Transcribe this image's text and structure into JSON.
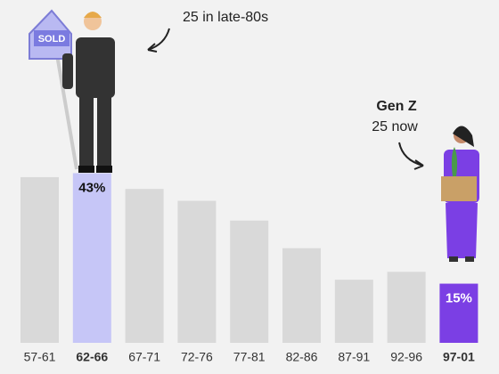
{
  "chart_data": {
    "type": "bar",
    "categories": [
      "57-61",
      "62-66",
      "67-71",
      "72-76",
      "77-81",
      "82-86",
      "87-91",
      "92-96",
      "97-01"
    ],
    "values": [
      42,
      43,
      39,
      36,
      31,
      24,
      16,
      18,
      15
    ],
    "value_labels": [
      null,
      "43%",
      null,
      null,
      null,
      null,
      null,
      null,
      "15%"
    ],
    "color": "#d9d9d9",
    "colors": [
      "#d9d9d9",
      "#c6c6f7",
      "#d9d9d9",
      "#d9d9d9",
      "#d9d9d9",
      "#d9d9d9",
      "#d9d9d9",
      "#d9d9d9",
      "#7b3fe4"
    ],
    "annotations": [
      "25 in late-80s",
      "Gen Z",
      "25 now"
    ]
  }
}
